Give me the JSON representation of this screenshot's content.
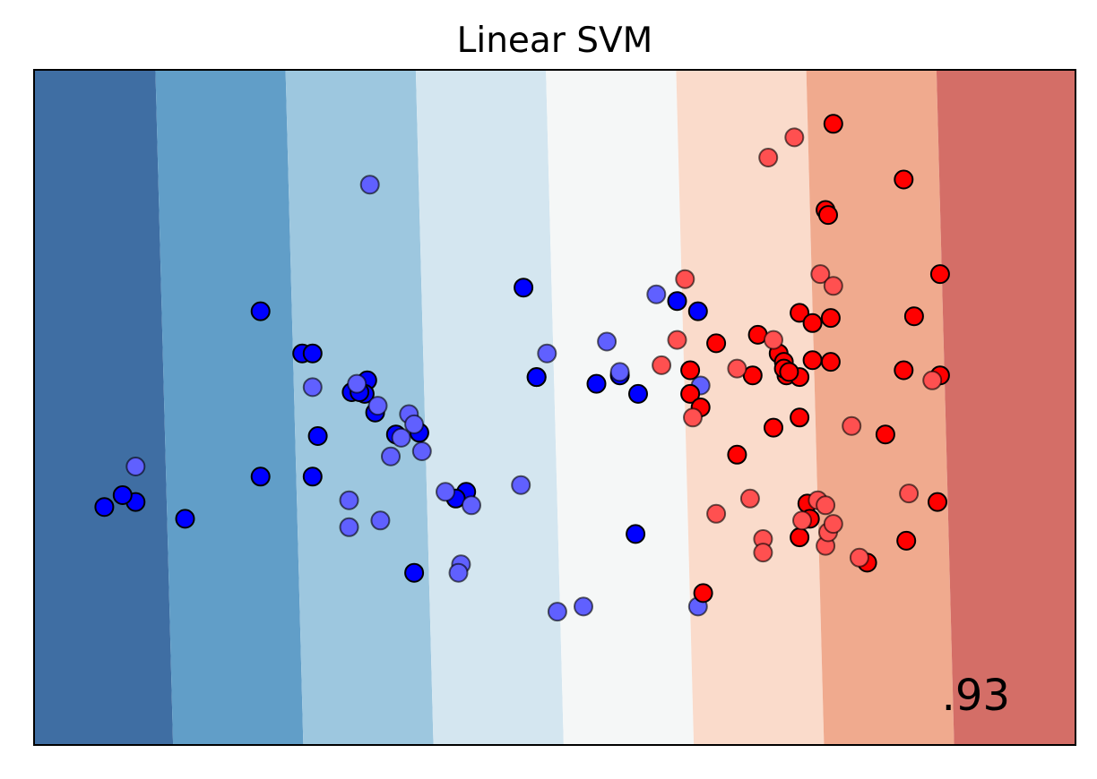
{
  "chart_data": {
    "type": "scatter",
    "title": "Linear SVM",
    "score_label": ".93",
    "xlabel": "",
    "ylabel": "",
    "xlim": [
      -2.0,
      2.0
    ],
    "ylim": [
      -1.5,
      2.5
    ],
    "axis_ticks": false,
    "decision_regions": {
      "boundaries": [
        -1.5,
        -1.0,
        -0.5,
        0.0,
        0.5,
        1.0,
        1.5
      ],
      "colors": [
        "#3f6ea3",
        "#619ec8",
        "#9dc7df",
        "#d4e6f0",
        "#f5f7f7",
        "#fadbcb",
        "#f0aa8e",
        "#d46e67",
        "#a33b4d"
      ],
      "slant_per_y": 0.017
    },
    "series": [
      {
        "name": "",
        "role": "train",
        "color": "#0000ff",
        "points": [
          [
            -1.13,
            1.07
          ],
          [
            -0.97,
            0.82
          ],
          [
            -0.93,
            0.82
          ],
          [
            -0.78,
            0.59
          ],
          [
            -0.74,
            0.59
          ],
          [
            -0.72,
            0.66
          ],
          [
            -0.73,
            0.58
          ],
          [
            -0.75,
            0.59
          ],
          [
            -0.69,
            0.47
          ],
          [
            -0.91,
            0.33
          ],
          [
            -1.61,
            -0.06
          ],
          [
            -1.66,
            -0.02
          ],
          [
            -1.73,
            -0.09
          ],
          [
            -1.42,
            -0.16
          ],
          [
            -1.13,
            0.09
          ],
          [
            -0.93,
            0.09
          ],
          [
            -0.52,
            0.35
          ],
          [
            -0.61,
            0.34
          ],
          [
            -0.34,
            0.0
          ],
          [
            -0.38,
            -0.04
          ],
          [
            -0.54,
            -0.48
          ],
          [
            -0.07,
            0.68
          ],
          [
            -0.07,
            0.68
          ],
          [
            -0.12,
            1.21
          ],
          [
            0.16,
            0.64
          ],
          [
            0.25,
            0.69
          ],
          [
            0.32,
            0.58
          ],
          [
            0.47,
            1.13
          ],
          [
            0.55,
            1.07
          ],
          [
            0.31,
            -0.25
          ]
        ]
      },
      {
        "name": "",
        "role": "test",
        "color": "#6060ff",
        "points": [
          [
            -0.71,
            1.82
          ],
          [
            -1.61,
            0.15
          ],
          [
            -0.93,
            0.62
          ],
          [
            -0.76,
            0.64
          ],
          [
            -0.68,
            0.51
          ],
          [
            -0.56,
            0.46
          ],
          [
            -0.59,
            0.32
          ],
          [
            -0.63,
            0.21
          ],
          [
            -0.51,
            0.24
          ],
          [
            -0.54,
            0.4
          ],
          [
            -0.67,
            -0.17
          ],
          [
            -0.79,
            -0.21
          ],
          [
            -0.79,
            -0.05
          ],
          [
            -0.36,
            -0.43
          ],
          [
            -0.37,
            -0.48
          ],
          [
            -0.42,
            0.0
          ],
          [
            -0.32,
            -0.08
          ],
          [
            -0.13,
            0.04
          ],
          [
            -0.03,
            0.82
          ],
          [
            0.2,
            0.89
          ],
          [
            0.39,
            1.17
          ],
          [
            0.01,
            -0.71
          ],
          [
            0.11,
            -0.68
          ],
          [
            0.25,
            0.71
          ],
          [
            0.55,
            -0.68
          ],
          [
            0.56,
            0.63
          ]
        ]
      },
      {
        "name": "",
        "role": "train",
        "color": "#ff0000",
        "points": [
          [
            1.07,
            2.18
          ],
          [
            1.34,
            1.85
          ],
          [
            1.04,
            1.67
          ],
          [
            1.05,
            1.64
          ],
          [
            1.48,
            1.29
          ],
          [
            0.78,
            0.93
          ],
          [
            0.94,
            1.06
          ],
          [
            0.89,
            0.69
          ],
          [
            0.62,
            0.88
          ],
          [
            0.52,
            0.72
          ],
          [
            0.86,
            0.82
          ],
          [
            0.88,
            0.77
          ],
          [
            0.76,
            0.69
          ],
          [
            1.06,
            0.77
          ],
          [
            1.38,
            1.04
          ],
          [
            1.48,
            0.69
          ],
          [
            0.88,
            0.73
          ],
          [
            0.94,
            0.68
          ],
          [
            0.99,
            1.0
          ],
          [
            0.9,
            0.71
          ],
          [
            1.34,
            0.72
          ],
          [
            1.27,
            0.34
          ],
          [
            1.47,
            -0.06
          ],
          [
            1.35,
            -0.29
          ],
          [
            0.94,
            -0.27
          ],
          [
            0.7,
            0.22
          ],
          [
            0.52,
            0.58
          ],
          [
            0.56,
            0.5
          ],
          [
            0.97,
            -0.07
          ],
          [
            0.94,
            0.44
          ],
          [
            0.84,
            0.38
          ],
          [
            1.2,
            -0.42
          ],
          [
            1.06,
            1.03
          ],
          [
            0.99,
            0.78
          ],
          [
            0.57,
            -0.6
          ],
          [
            0.98,
            -0.16
          ]
        ]
      },
      {
        "name": "",
        "role": "test",
        "color": "#ff5050",
        "points": [
          [
            0.92,
            2.1
          ],
          [
            0.82,
            1.98
          ],
          [
            1.02,
            1.29
          ],
          [
            1.07,
            1.22
          ],
          [
            0.5,
            1.26
          ],
          [
            0.47,
            0.9
          ],
          [
            1.45,
            0.66
          ],
          [
            0.41,
            0.75
          ],
          [
            0.7,
            0.73
          ],
          [
            0.84,
            0.9
          ],
          [
            1.36,
            -0.01
          ],
          [
            1.01,
            -0.05
          ],
          [
            1.04,
            -0.08
          ],
          [
            0.53,
            0.44
          ],
          [
            1.14,
            0.39
          ],
          [
            0.62,
            -0.13
          ],
          [
            0.75,
            -0.04
          ],
          [
            0.95,
            -0.17
          ],
          [
            1.04,
            -0.32
          ],
          [
            0.8,
            -0.28
          ],
          [
            0.8,
            -0.36
          ],
          [
            1.17,
            -0.39
          ],
          [
            1.05,
            -0.24
          ],
          [
            1.07,
            -0.19
          ]
        ]
      }
    ]
  }
}
